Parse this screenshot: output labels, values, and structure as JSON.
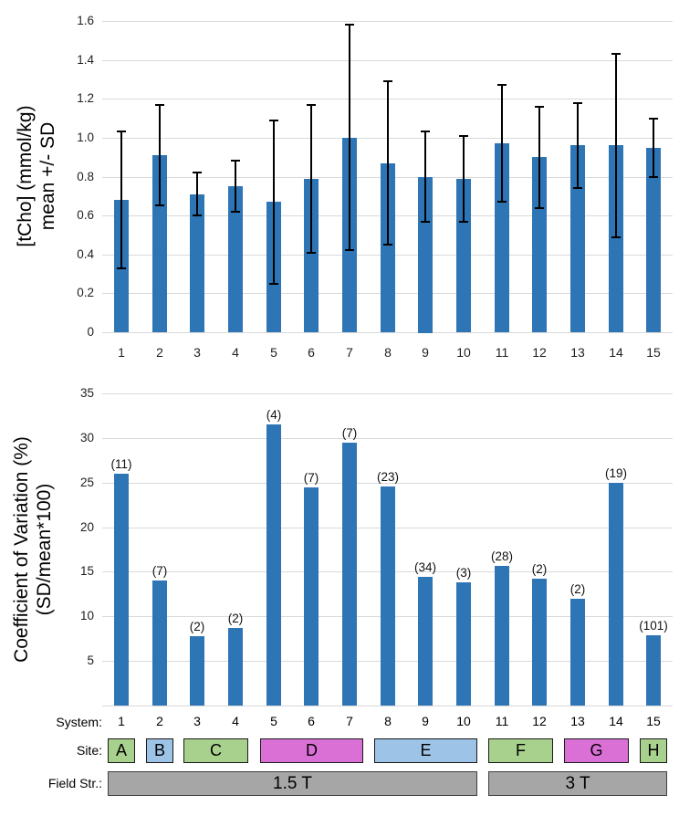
{
  "figure": {
    "background": "#ffffff",
    "bar_color": "#2E75B6",
    "error_color": "#000000",
    "grid_color": "#D9D9D9",
    "site_green": "#A9D18E",
    "site_blue": "#9DC3E6",
    "site_magenta": "#DA70D6",
    "field_gray": "#A6A6A6"
  },
  "chart_data": [
    {
      "type": "bar",
      "title": "",
      "ylabel_lines": [
        "[tCho] (mmol/kg)",
        "mean +/- SD"
      ],
      "xlabel": "",
      "categories": [
        "1",
        "2",
        "3",
        "4",
        "5",
        "6",
        "7",
        "8",
        "9",
        "10",
        "11",
        "12",
        "13",
        "14",
        "15"
      ],
      "series": [
        {
          "name": "tCho mean",
          "values": [
            0.68,
            0.91,
            0.71,
            0.75,
            0.67,
            0.79,
            1.0,
            0.87,
            0.8,
            0.79,
            0.97,
            0.9,
            0.96,
            0.96,
            0.95
          ],
          "sd": [
            0.35,
            0.26,
            0.11,
            0.13,
            0.42,
            0.38,
            0.58,
            0.42,
            0.23,
            0.22,
            0.3,
            0.26,
            0.22,
            0.47,
            0.15
          ]
        }
      ],
      "ylim": [
        0,
        1.6
      ],
      "ytick_values": [
        0,
        0.2,
        0.4,
        0.6,
        0.8,
        1.0,
        1.2,
        1.4,
        1.6
      ],
      "ytick_labels": [
        "0",
        "0.2",
        "0.4",
        "0.6",
        "0.8",
        "1.0",
        "1.2",
        "1.4",
        "1.6"
      ],
      "grid": true,
      "legend": "none",
      "show_x_labels": true
    },
    {
      "type": "bar",
      "title": "",
      "ylabel_lines": [
        "Coefficient of Variation (%)",
        "(SD/mean*100)"
      ],
      "xlabel": "",
      "categories": [
        "1",
        "2",
        "3",
        "4",
        "5",
        "6",
        "7",
        "8",
        "9",
        "10",
        "11",
        "12",
        "13",
        "14",
        "15"
      ],
      "series": [
        {
          "name": "CoV percent",
          "values": [
            26.0,
            14.0,
            7.8,
            8.7,
            31.5,
            24.5,
            29.5,
            24.6,
            14.4,
            13.8,
            15.7,
            14.2,
            12.0,
            25.0,
            7.9
          ]
        }
      ],
      "bar_labels": [
        "(11)",
        "(7)",
        "(2)",
        "(2)",
        "(4)",
        "(7)",
        "(7)",
        "(23)",
        "(34)",
        "(3)",
        "(28)",
        "(2)",
        "(2)",
        "(19)",
        "(101)"
      ],
      "ylim": [
        0,
        35
      ],
      "ytick_values": [
        5,
        10,
        15,
        20,
        25,
        30,
        35
      ],
      "ytick_labels": [
        "5",
        "10",
        "15",
        "20",
        "25",
        "30",
        "35"
      ],
      "grid": true,
      "legend": "none",
      "show_x_labels": false
    }
  ],
  "annotations": {
    "system_label": "System:",
    "site_label": "Site:",
    "field_label": "Field Str.:",
    "systems": [
      "1",
      "2",
      "3",
      "4",
      "5",
      "6",
      "7",
      "8",
      "9",
      "10",
      "11",
      "12",
      "13",
      "14",
      "15"
    ],
    "sites": [
      {
        "label": "A",
        "from": 1,
        "to": 1,
        "color": "#A9D18E"
      },
      {
        "label": "B",
        "from": 2,
        "to": 2,
        "color": "#9DC3E6"
      },
      {
        "label": "C",
        "from": 3,
        "to": 4,
        "color": "#A9D18E"
      },
      {
        "label": "D",
        "from": 5,
        "to": 7,
        "color": "#DA70D6"
      },
      {
        "label": "E",
        "from": 8,
        "to": 10,
        "color": "#9DC3E6"
      },
      {
        "label": "F",
        "from": 11,
        "to": 12,
        "color": "#A9D18E"
      },
      {
        "label": "G",
        "from": 13,
        "to": 14,
        "color": "#DA70D6"
      },
      {
        "label": "H",
        "from": 15,
        "to": 15,
        "color": "#A9D18E"
      }
    ],
    "fields": [
      {
        "label": "1.5 T",
        "from": 1,
        "to": 10,
        "color": "#A6A6A6"
      },
      {
        "label": "3 T",
        "from": 11,
        "to": 15,
        "color": "#A6A6A6"
      }
    ]
  }
}
